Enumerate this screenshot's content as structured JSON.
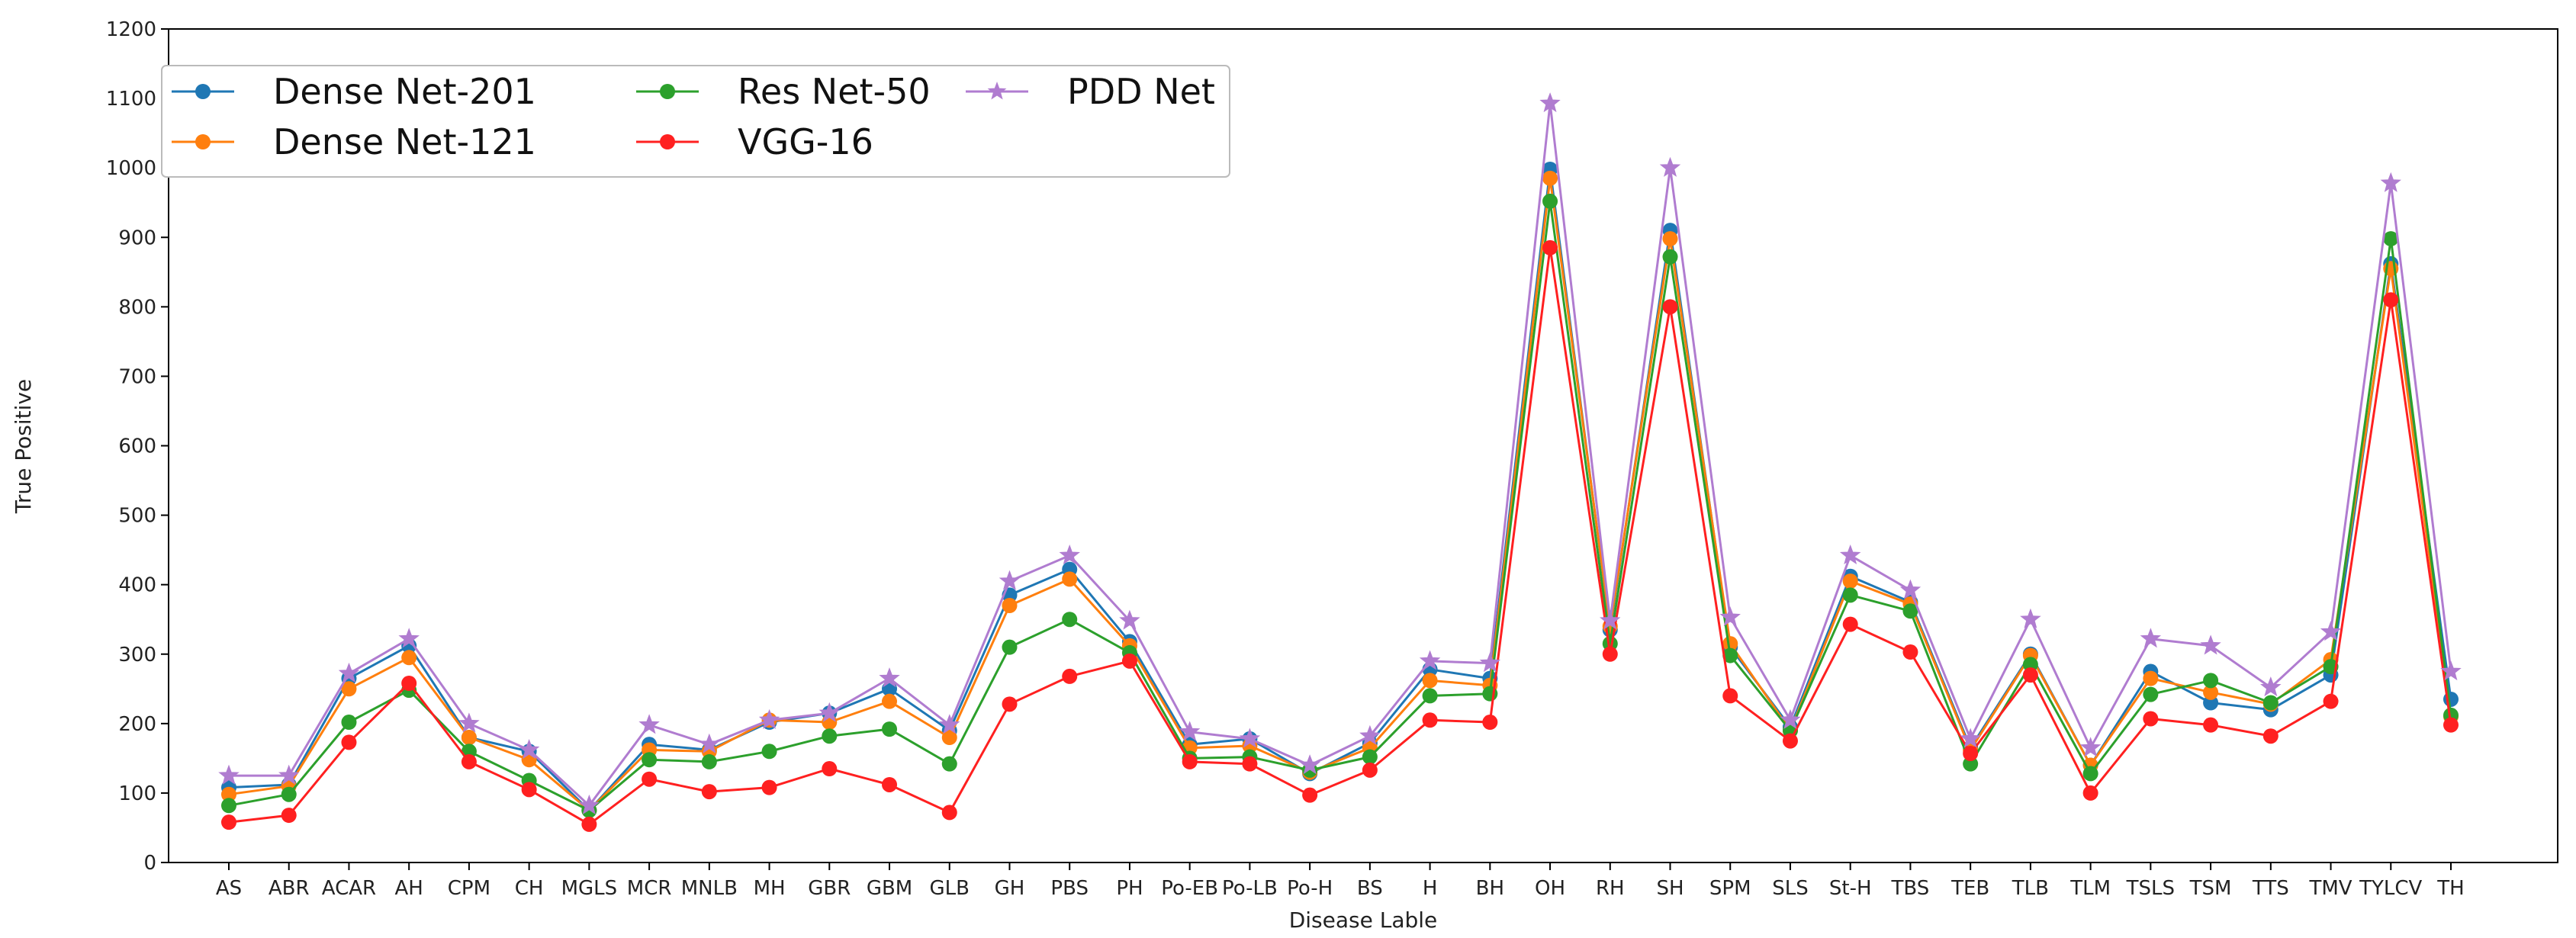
{
  "chart_data": {
    "type": "line",
    "title": "",
    "xlabel": "Disease Lable",
    "ylabel": "True Positive",
    "ylim": [
      0,
      1200
    ],
    "yticks": [
      0,
      100,
      200,
      300,
      400,
      500,
      600,
      700,
      800,
      900,
      1000,
      1100,
      1200
    ],
    "grid": false,
    "legend_position": "top-left",
    "categories": [
      "AS",
      "ABR",
      "ACAR",
      "AH",
      "CPM",
      "CH",
      "MGLS",
      "MCR",
      "MNLB",
      "MH",
      "GBR",
      "GBM",
      "GLB",
      "GH",
      "PBS",
      "PH",
      "Po-EB",
      "Po-LB",
      "Po-H",
      "BS",
      "H",
      "BH",
      "OH",
      "RH",
      "SH",
      "SPM",
      "SLS",
      "St-H",
      "TBS",
      "TEB",
      "TLB",
      "TLM",
      "TSLS",
      "TSM",
      "TTS",
      "TMV",
      "TYLCV",
      "TH"
    ],
    "series": [
      {
        "name": "Dense Net-201",
        "color": "#1f77b4",
        "marker": "circle",
        "values": [
          108,
          112,
          265,
          312,
          180,
          160,
          75,
          170,
          162,
          202,
          215,
          250,
          190,
          385,
          422,
          318,
          170,
          178,
          128,
          172,
          278,
          265,
          998,
          335,
          910,
          310,
          195,
          412,
          375,
          165,
          300,
          140,
          275,
          230,
          220,
          270,
          862,
          235
        ]
      },
      {
        "name": "Dense Net-121",
        "color": "#ff7f0e",
        "marker": "circle",
        "values": [
          98,
          110,
          250,
          295,
          180,
          148,
          75,
          162,
          160,
          205,
          202,
          232,
          180,
          370,
          408,
          312,
          165,
          168,
          130,
          165,
          262,
          255,
          985,
          340,
          898,
          315,
          190,
          405,
          372,
          162,
          298,
          140,
          265,
          245,
          228,
          292,
          855,
          210
        ]
      },
      {
        "name": "Res Net-50",
        "color": "#2ca02c",
        "marker": "circle",
        "values": [
          82,
          98,
          202,
          248,
          160,
          118,
          75,
          148,
          145,
          160,
          182,
          192,
          142,
          310,
          350,
          302,
          150,
          152,
          133,
          152,
          240,
          243,
          952,
          315,
          872,
          298,
          190,
          385,
          362,
          142,
          285,
          128,
          242,
          262,
          230,
          282,
          898,
          212
        ]
      },
      {
        "name": "VGG-16",
        "color": "#ff2020",
        "marker": "circle",
        "values": [
          58,
          68,
          173,
          258,
          145,
          105,
          55,
          120,
          102,
          108,
          135,
          112,
          72,
          228,
          268,
          290,
          145,
          142,
          97,
          133,
          205,
          202,
          885,
          300,
          800,
          240,
          175,
          343,
          303,
          157,
          270,
          100,
          207,
          198,
          182,
          232,
          810,
          198
        ]
      },
      {
        "name": "PDD Net",
        "color": "#b07cd0",
        "marker": "star",
        "values": [
          125,
          125,
          272,
          322,
          200,
          162,
          82,
          198,
          170,
          205,
          215,
          265,
          198,
          405,
          442,
          348,
          188,
          178,
          140,
          182,
          290,
          287,
          1093,
          348,
          1000,
          353,
          205,
          442,
          392,
          178,
          350,
          165,
          322,
          312,
          252,
          332,
          978,
          275
        ]
      }
    ]
  }
}
